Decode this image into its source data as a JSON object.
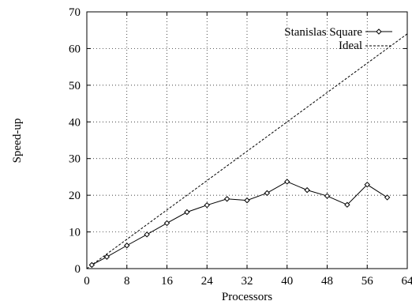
{
  "chart_data": {
    "type": "line",
    "title": "",
    "xlabel": "Processors",
    "ylabel": "Speed-up",
    "xlim": [
      0,
      64
    ],
    "ylim": [
      0,
      70
    ],
    "xticks": [
      0,
      8,
      16,
      24,
      32,
      40,
      48,
      56,
      64
    ],
    "yticks": [
      0,
      10,
      20,
      30,
      40,
      50,
      60,
      70
    ],
    "grid": true,
    "legend_position": "top-right",
    "series": [
      {
        "name": "Stanislas Square",
        "style": "solid-with-diamond-markers",
        "x": [
          1,
          4,
          8,
          12,
          16,
          20,
          24,
          28,
          32,
          36,
          40,
          44,
          48,
          52,
          56,
          60
        ],
        "y": [
          1.0,
          3.2,
          6.3,
          9.3,
          12.4,
          15.4,
          17.3,
          19.0,
          18.6,
          20.6,
          23.7,
          21.4,
          19.8,
          17.4,
          22.9,
          19.4
        ]
      },
      {
        "name": "Ideal",
        "style": "dashed",
        "x": [
          0,
          64
        ],
        "y": [
          0,
          64
        ]
      }
    ]
  }
}
